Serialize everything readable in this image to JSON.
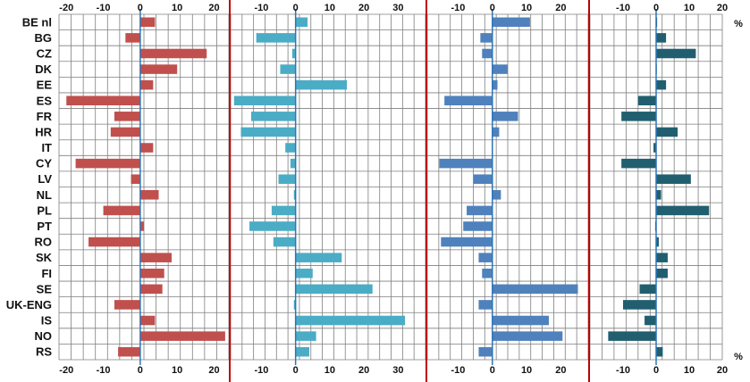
{
  "chart_data": {
    "type": "bar",
    "orientation": "horizontal",
    "unit": "%",
    "categories": [
      "BE nl",
      "BG",
      "CZ",
      "DK",
      "EE",
      "ES",
      "FR",
      "HR",
      "IT",
      "CY",
      "LV",
      "NL",
      "PL",
      "PT",
      "RO",
      "SK",
      "FI",
      "SE",
      "UK-ENG",
      "IS",
      "NO",
      "RS"
    ],
    "panels": [
      {
        "name": "panel-1",
        "color": "#c0504d",
        "xlim": [
          -22,
          24
        ],
        "ticks": [
          -20,
          -10,
          0,
          10,
          20
        ],
        "tick_labels": [
          "-20",
          "-10",
          "0",
          "10",
          "20"
        ],
        "values": [
          4,
          -4,
          18,
          10,
          3.5,
          -20,
          -7,
          -8,
          3.5,
          -17.5,
          -2.5,
          5,
          -10,
          1,
          -14,
          8.5,
          6.5,
          6,
          -7,
          4,
          23,
          -6
        ]
      },
      {
        "name": "panel-2",
        "color": "#4bacc6",
        "xlim": [
          -19,
          38
        ],
        "ticks": [
          -10,
          0,
          10,
          20,
          30
        ],
        "tick_labels": [
          "-10",
          "0",
          "10",
          "20",
          "30"
        ],
        "values": [
          3.5,
          -11.5,
          -1,
          -4.5,
          15,
          -18,
          -13,
          -16,
          -3,
          -1.5,
          -5,
          -0.5,
          -7,
          -13.5,
          -6.5,
          13.5,
          5,
          22.5,
          -0.5,
          32,
          6,
          4
        ]
      },
      {
        "name": "panel-3",
        "color": "#4f81bd",
        "xlim": [
          -19,
          28
        ],
        "ticks": [
          -10,
          0,
          10,
          20
        ],
        "tick_labels": [
          "-10",
          "0",
          "10",
          "20"
        ],
        "values": [
          11,
          -3.5,
          -3,
          4.5,
          1.5,
          -14,
          7.5,
          2,
          0,
          -15.5,
          -5.5,
          2.5,
          -7.5,
          -8.5,
          -15,
          -4,
          -3,
          25,
          -4,
          16.5,
          20.5,
          -4
        ]
      },
      {
        "name": "panel-4",
        "color": "#215f70",
        "xlim": [
          -20,
          20
        ],
        "ticks": [
          -10,
          0,
          10,
          20
        ],
        "tick_labels": [
          "-10",
          "0",
          "10",
          "20"
        ],
        "values": [
          0.3,
          3,
          12,
          0.2,
          3,
          -5.5,
          -10.5,
          6.5,
          -0.8,
          -10.5,
          10.5,
          1.5,
          16,
          -0.3,
          0.8,
          3.5,
          3.5,
          -5,
          -10,
          -3.5,
          -14.5,
          2
        ]
      }
    ]
  }
}
